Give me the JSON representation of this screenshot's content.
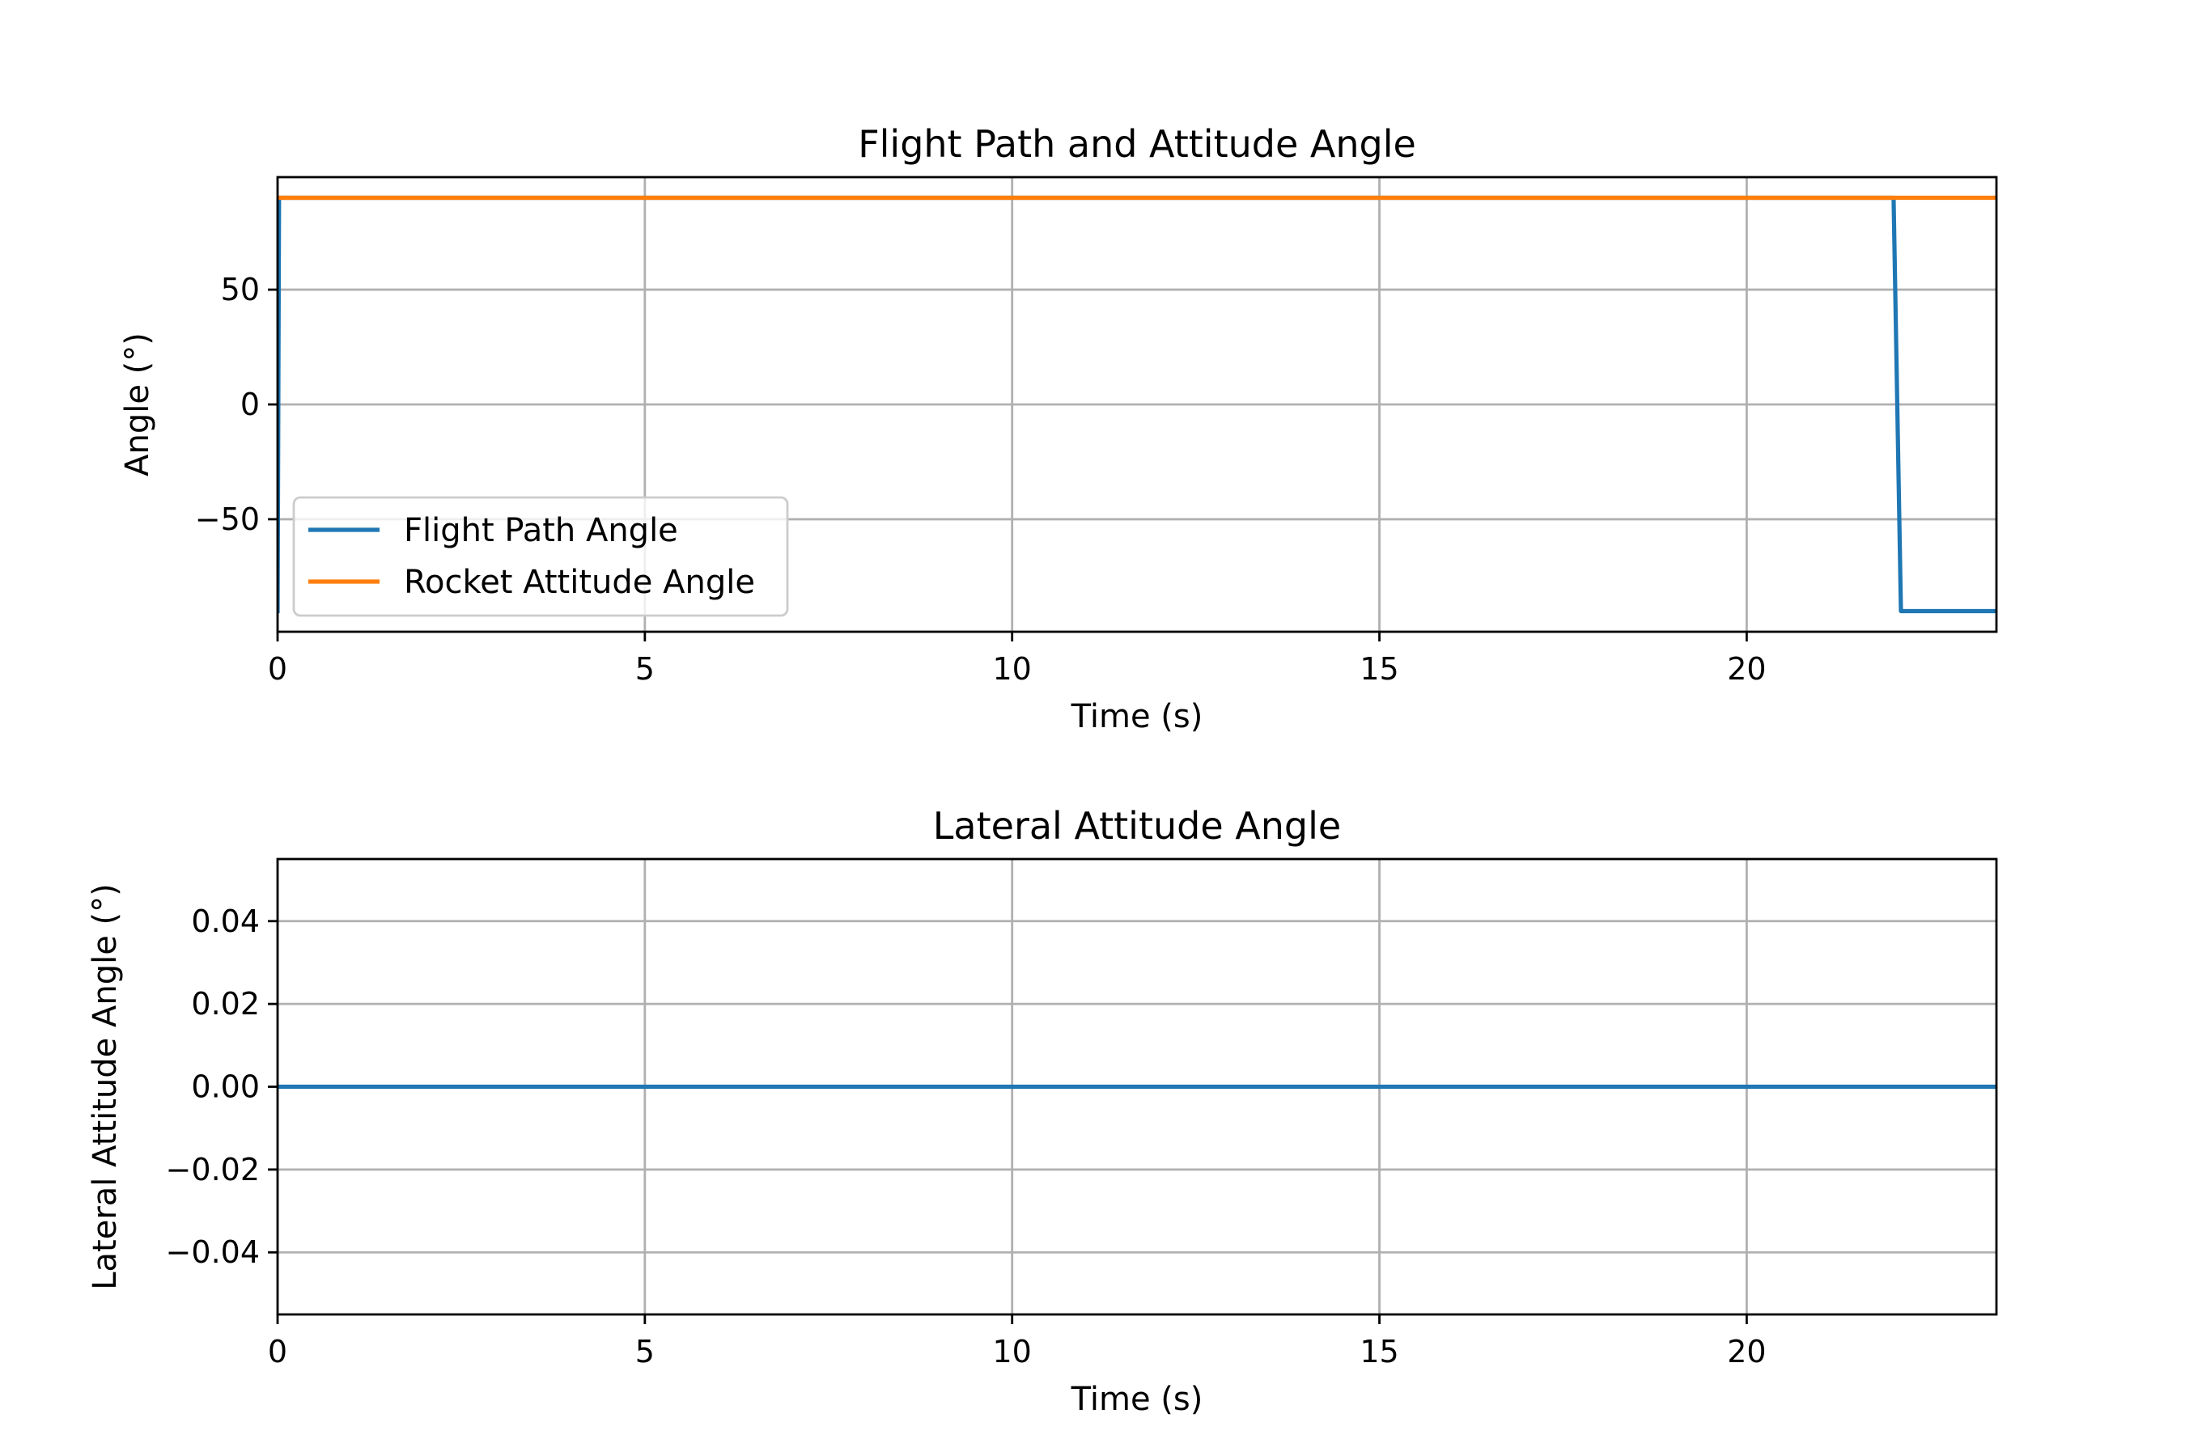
{
  "chart_data": [
    {
      "type": "line",
      "title": "Flight Path and Attitude Angle",
      "xlabel": "Time (s)",
      "ylabel": "Angle (°)",
      "xlim": [
        0,
        23.4
      ],
      "ylim": [
        -99,
        99
      ],
      "xticks": [
        0,
        5,
        10,
        15,
        20
      ],
      "xtick_labels": [
        "0",
        "5",
        "10",
        "15",
        "20"
      ],
      "yticks": [
        50,
        0,
        -50
      ],
      "ytick_labels": [
        "50",
        "0",
        "−50"
      ],
      "grid": true,
      "legend": "lower-left",
      "series": [
        {
          "name": "Flight Path Angle",
          "color": "#1f77b4",
          "points": [
            [
              0,
              -90
            ],
            [
              0.02,
              90
            ],
            [
              22.0,
              90
            ],
            [
              22.1,
              -90
            ],
            [
              23.4,
              -90
            ]
          ]
        },
        {
          "name": "Rocket Attitude Angle",
          "color": "#ff7f0e",
          "points": [
            [
              0,
              90
            ],
            [
              23.4,
              90
            ]
          ]
        }
      ]
    },
    {
      "type": "line",
      "title": "Lateral Attitude Angle",
      "xlabel": "Time (s)",
      "ylabel": "Lateral Attitude Angle (°)",
      "xlim": [
        0,
        23.4
      ],
      "ylim": [
        -0.055,
        0.055
      ],
      "xticks": [
        0,
        5,
        10,
        15,
        20
      ],
      "xtick_labels": [
        "0",
        "5",
        "10",
        "15",
        "20"
      ],
      "yticks": [
        0.04,
        0.02,
        0.0,
        -0.02,
        -0.04
      ],
      "ytick_labels": [
        "0.04",
        "0.02",
        "0.00",
        "−0.02",
        "−0.04"
      ],
      "grid": true,
      "legend": "none",
      "series": [
        {
          "color": "#1f77b4",
          "points": [
            [
              0,
              0
            ],
            [
              23.4,
              0
            ]
          ]
        }
      ]
    }
  ]
}
